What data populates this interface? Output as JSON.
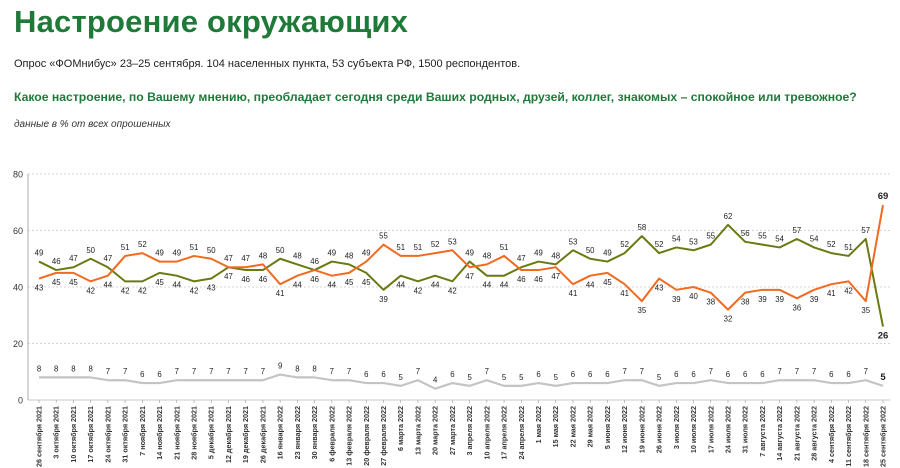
{
  "header": {
    "title": "Настроение окружающих",
    "subtitle": "Опрос «ФОМнибус» 23–25 сентября. 104 населенных пункта, 53 субъекта РФ, 1500 респондентов.",
    "question": "Какое настроение, по Вашему мнению, преобладает сегодня среди Ваших родных, друзей, коллег, знакомых – спокойное или тревожное?",
    "note": "данные в % от всех опрошенных"
  },
  "colors": {
    "calm": "#6a7a12",
    "anxious": "#f26a21",
    "unknown": "#c4c4c4",
    "grid": "#c9c9c9"
  },
  "chart_data": {
    "type": "line",
    "ylim": [
      0,
      80
    ],
    "yticks": [
      0,
      20,
      40,
      60,
      80
    ],
    "x": [
      "26 сентября 2021",
      "3 октября 2021",
      "10 октября 2021",
      "17 октября 2021",
      "24 октября 2021",
      "31 октября 2021",
      "7 ноября 2021",
      "14 ноября 2021",
      "21 ноября 2021",
      "28 ноября 2021",
      "5 декабря 2021",
      "12 декабря 2021",
      "19 декабря 2021",
      "26 декабря 2021",
      "16 января 2022",
      "23 января 2022",
      "30 января 2022",
      "6 февраля 2022",
      "13 февраля 2022",
      "20 февраля 2022",
      "27 февраля 2022",
      "6 марта 2022",
      "13 марта 2022",
      "20 марта 2022",
      "27 марта 2022",
      "3 апреля 2022",
      "10 апреля 2022",
      "17 апреля 2022",
      "24 апреля 2022",
      "1 мая 2022",
      "15 мая 2022",
      "22 мая 2022",
      "29 мая 2022",
      "5 июня 2022",
      "12 июня 2022",
      "19 июня 2022",
      "26 июня 2022",
      "3 июля 2022",
      "10 июля 2022",
      "17 июля 2022",
      "24 июля 2022",
      "31 июля 2022",
      "7 августа 2022",
      "14 августа 2022",
      "21 августа 2022",
      "28 августа 2022",
      "4 сентября 2022",
      "11 сентября 2022",
      "18 сентября 2022",
      "25 сентября 2022"
    ],
    "series": [
      {
        "key": "calm",
        "values": [
          49,
          46,
          47,
          50,
          47,
          42,
          42,
          45,
          44,
          42,
          43,
          47,
          46,
          46,
          50,
          48,
          46,
          49,
          48,
          45,
          39,
          44,
          42,
          44,
          42,
          49,
          44,
          44,
          47,
          49,
          48,
          53,
          50,
          49,
          52,
          58,
          52,
          54,
          53,
          55,
          62,
          56,
          55,
          54,
          57,
          54,
          52,
          51,
          57,
          26
        ]
      },
      {
        "key": "anxious",
        "values": [
          43,
          45,
          45,
          42,
          44,
          51,
          52,
          49,
          49,
          51,
          50,
          47,
          47,
          48,
          41,
          44,
          46,
          44,
          45,
          49,
          55,
          51,
          51,
          52,
          53,
          47,
          48,
          51,
          46,
          46,
          47,
          41,
          44,
          45,
          41,
          35,
          43,
          39,
          40,
          38,
          32,
          38,
          39,
          39,
          36,
          39,
          41,
          42,
          35,
          69
        ]
      },
      {
        "key": "unknown",
        "values": [
          8,
          8,
          8,
          8,
          7,
          7,
          6,
          6,
          7,
          7,
          7,
          7,
          7,
          7,
          9,
          8,
          8,
          7,
          7,
          6,
          6,
          5,
          7,
          4,
          6,
          5,
          7,
          5,
          5,
          6,
          5,
          6,
          6,
          6,
          7,
          7,
          5,
          6,
          6,
          7,
          6,
          6,
          6,
          7,
          7,
          7,
          6,
          6,
          7,
          5
        ]
      }
    ]
  }
}
